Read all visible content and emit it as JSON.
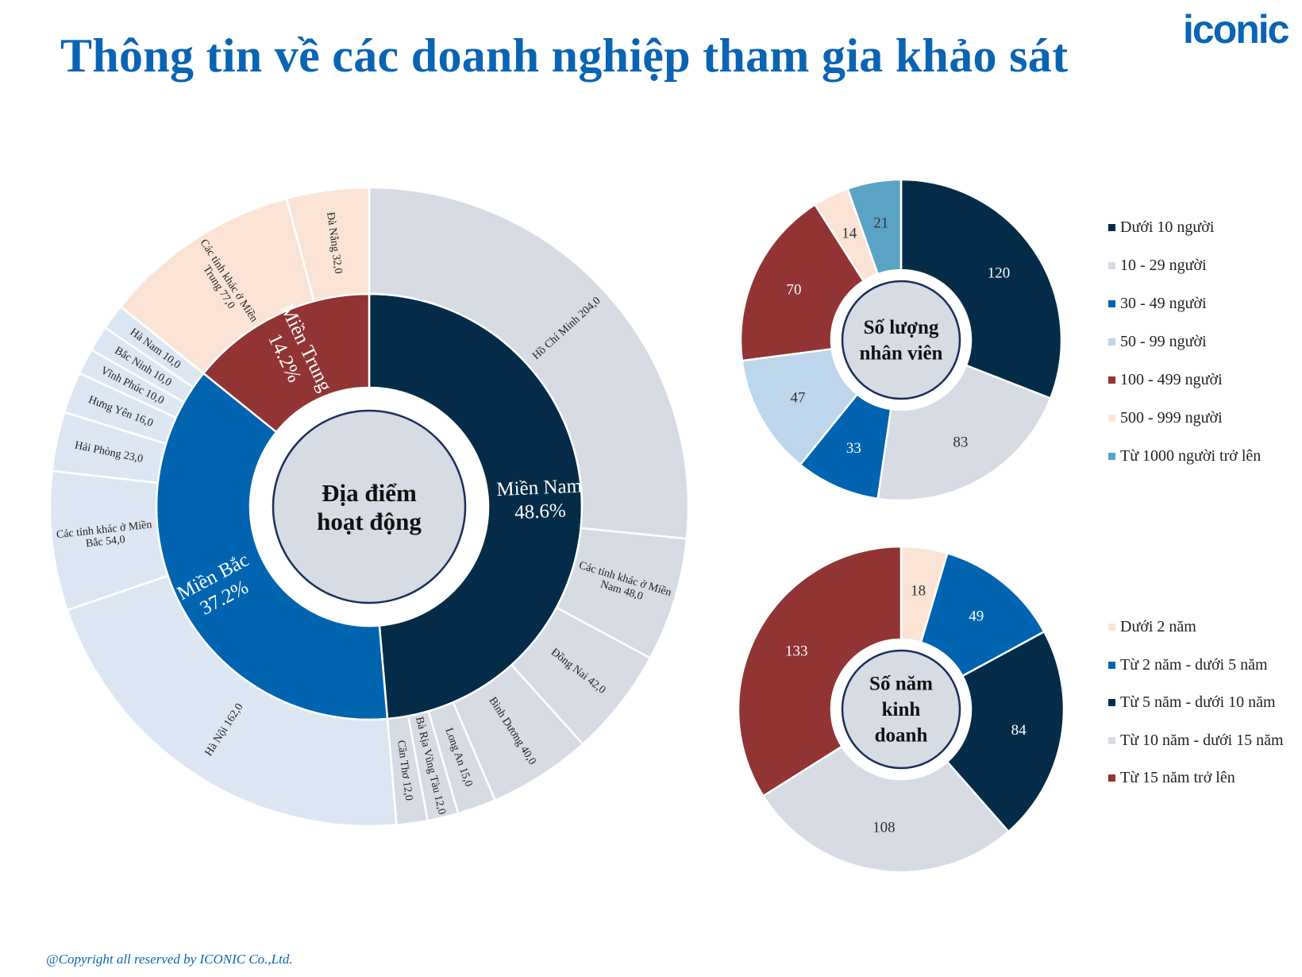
{
  "header": {
    "title": "Thông tin về các doanh nghiệp tham gia khảo sát",
    "logo_text": "iconic"
  },
  "footer": {
    "copyright": "@Copyright all reserved by ICONIC Co.,Ltd."
  },
  "chart_data": [
    {
      "type": "sunburst",
      "center_label": [
        "Địa điểm",
        "hoạt động"
      ],
      "regions": [
        {
          "name": "Miền Nam",
          "pct": "48.6%",
          "color": "#042c48",
          "child_color": "#d6dbe4",
          "children": [
            {
              "name": "Hồ Chí Minh",
              "value": 204
            },
            {
              "name": "Các tỉnh khác ở Miền Nam",
              "value": 48
            },
            {
              "name": "Đồng Nai",
              "value": 42
            },
            {
              "name": "Bình Dương",
              "value": 40
            },
            {
              "name": "Long An",
              "value": 15
            },
            {
              "name": "Bà Rịa Vũng Tàu",
              "value": 12
            },
            {
              "name": "Cần Thơ",
              "value": 12
            }
          ]
        },
        {
          "name": "Miền Bắc",
          "pct": "37.2%",
          "color": "#0064b0",
          "child_color": "#dde7f3",
          "children": [
            {
              "name": "Hà Nội",
              "value": 162
            },
            {
              "name": "Các tỉnh khác ở Miền Bắc",
              "value": 54
            },
            {
              "name": "Hải Phòng",
              "value": 23
            },
            {
              "name": "Hưng Yên",
              "value": 16
            },
            {
              "name": "Vĩnh Phúc",
              "value": 10
            },
            {
              "name": "Bắc Ninh",
              "value": 10
            },
            {
              "name": "Hà Nam",
              "value": 10
            }
          ]
        },
        {
          "name": "Miền Trung",
          "pct": "14.2%",
          "color": "#923434",
          "child_color": "#fbe4d6",
          "children": [
            {
              "name": "Các tỉnh khác ở Miền Trung",
              "value": 77
            },
            {
              "name": "Đà Nẵng",
              "value": 32
            }
          ]
        }
      ]
    },
    {
      "type": "donut",
      "center_label": [
        "Số lượng",
        "nhân viên"
      ],
      "legend_position": "right",
      "slices": [
        {
          "name": "Dưới 10 người",
          "value": 120,
          "color": "#042c48",
          "label_color": "#ffffff"
        },
        {
          "name": "10 - 29 người",
          "value": 83,
          "color": "#d6dbe4",
          "label_color": "#333333"
        },
        {
          "name": "30 - 49 người",
          "value": 33,
          "color": "#0064b0",
          "label_color": "#ffffff"
        },
        {
          "name": "50 - 99 người",
          "value": 47,
          "color": "#bed6ec",
          "label_color": "#333333"
        },
        {
          "name": "100 - 499 người",
          "value": 70,
          "color": "#923434",
          "label_color": "#ffffff"
        },
        {
          "name": "500 - 999 người",
          "value": 14,
          "color": "#fbe4d6",
          "label_color": "#333333"
        },
        {
          "name": "Từ 1000 người trở lên",
          "value": 21,
          "color": "#5ba3c5",
          "label_color": "#333333"
        }
      ]
    },
    {
      "type": "donut",
      "center_label": [
        "Số năm",
        "kinh",
        "doanh"
      ],
      "legend_position": "right",
      "slices": [
        {
          "name": "Dưới 2 năm",
          "value": 18,
          "color": "#fbe4d6",
          "label_color": "#333333"
        },
        {
          "name": "Từ 2 năm - dưới 5 năm",
          "value": 49,
          "color": "#0064b0",
          "label_color": "#ffffff"
        },
        {
          "name": "Từ 5 năm - dưới 10 năm",
          "value": 84,
          "color": "#042c48",
          "label_color": "#ffffff"
        },
        {
          "name": "Từ 10 năm - dưới 15 năm",
          "value": 108,
          "color": "#d6dbe4",
          "label_color": "#333333"
        },
        {
          "name": "Từ 15 năm trở lên",
          "value": 133,
          "color": "#923434",
          "label_color": "#ffffff"
        }
      ]
    }
  ]
}
